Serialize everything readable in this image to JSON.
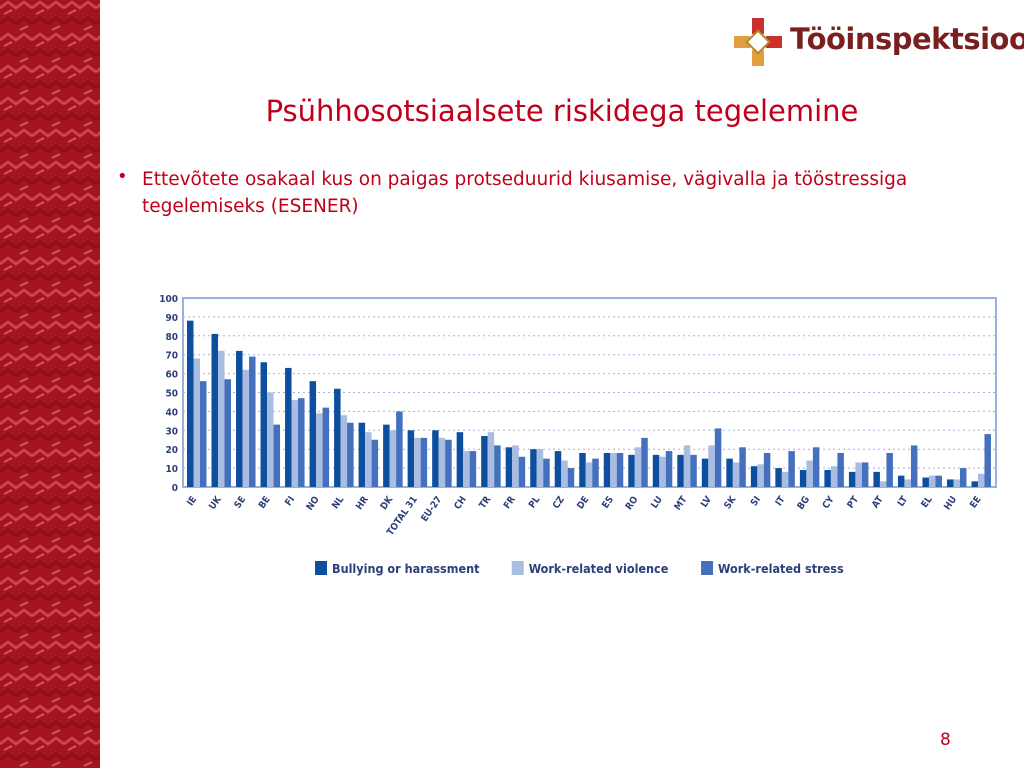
{
  "slide": {
    "title": "Psühhosotsiaalsete riskidega tegelemine",
    "bullet_symbol": "•",
    "bullet": "Ettevõtete osakaal kus on paigas protseduurid kiusamise, vägivalla ja tööstressiga tegelemiseks (ESENER)",
    "page_number": "8",
    "logo_text": "Tööinspektsioon"
  },
  "colors": {
    "side_band": "#a3141e",
    "title": "#c0001a",
    "logo_text": "#7a1f1f",
    "bullying": "#0d4f9e",
    "violence": "#a9bde3",
    "stress": "#4570bd",
    "plot_frame": "#9ab1dd",
    "grid": "#9fb5dd",
    "axis_text": "#2c3f78"
  },
  "chart_data": {
    "type": "bar",
    "ylim": [
      0,
      100
    ],
    "yticks": [
      "0",
      "10",
      "20",
      "30",
      "40",
      "50",
      "60",
      "70",
      "80",
      "90",
      "100"
    ],
    "grid": "horizontal dotted",
    "legend_position": "bottom",
    "categories": [
      "IE",
      "UK",
      "SE",
      "BE",
      "FI",
      "NO",
      "NL",
      "HR",
      "DK",
      "TOTAL 31",
      "EU-27",
      "CH",
      "TR",
      "FR",
      "PL",
      "CZ",
      "DE",
      "ES",
      "RO",
      "LU",
      "MT",
      "LV",
      "SK",
      "SI",
      "IT",
      "BG",
      "CY",
      "PT",
      "AT",
      "LT",
      "EL",
      "HU",
      "EE"
    ],
    "series": [
      {
        "name": "Bullying or harassment",
        "color": "#0d4f9e",
        "values": [
          88,
          81,
          72,
          66,
          63,
          56,
          52,
          34,
          33,
          30,
          30,
          29,
          27,
          21,
          20,
          19,
          18,
          18,
          17,
          17,
          17,
          15,
          15,
          11,
          10,
          9,
          9,
          8,
          8,
          6,
          5,
          4,
          3
        ]
      },
      {
        "name": "Work-related violence",
        "color": "#a9bde3",
        "values": [
          68,
          72,
          62,
          50,
          46,
          39,
          38,
          29,
          30,
          26,
          26,
          19,
          29,
          22,
          20,
          14,
          13,
          18,
          21,
          16,
          22,
          22,
          13,
          12,
          8,
          14,
          11,
          13,
          3,
          4,
          6,
          4,
          7
        ]
      },
      {
        "name": "Work-related stress",
        "color": "#4570bd",
        "values": [
          56,
          57,
          69,
          33,
          47,
          42,
          34,
          25,
          40,
          26,
          25,
          19,
          22,
          16,
          15,
          10,
          15,
          18,
          26,
          19,
          17,
          31,
          21,
          18,
          19,
          21,
          18,
          13,
          18,
          22,
          6,
          10,
          28
        ]
      }
    ]
  }
}
